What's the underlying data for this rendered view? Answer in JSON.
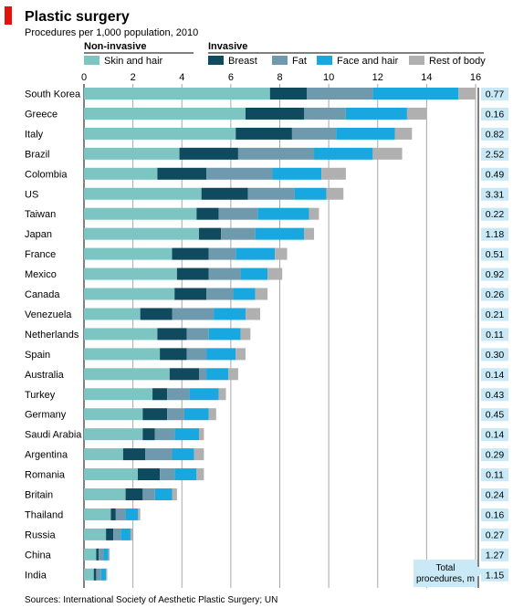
{
  "chart_data": {
    "type": "bar",
    "title": "Plastic surgery",
    "subtitle": "Procedures per 1,000 population, 2010",
    "source": "Sources: International Society of Aesthetic Plastic Surgery; UN",
    "xlim": [
      0,
      16
    ],
    "x_ticks": [
      "0",
      "2",
      "4",
      "6",
      "8",
      "10",
      "12",
      "14",
      "16"
    ],
    "legend": {
      "group_noninvasive": "Non-invasive",
      "group_invasive": "Invasive"
    },
    "total_label": [
      "Total",
      "procedures, m"
    ],
    "series": [
      {
        "name": "Skin and hair",
        "color": "#7cc5c3"
      },
      {
        "name": "Breast",
        "color": "#0f4a5e"
      },
      {
        "name": "Fat",
        "color": "#6f9aad"
      },
      {
        "name": "Face and hair",
        "color": "#18a7df"
      },
      {
        "name": "Rest of body",
        "color": "#b0b0b0"
      }
    ],
    "categories": [
      "South Korea",
      "Greece",
      "Italy",
      "Brazil",
      "Colombia",
      "US",
      "Taiwan",
      "Japan",
      "France",
      "Mexico",
      "Canada",
      "Venezuela",
      "Netherlands",
      "Spain",
      "Australia",
      "Turkey",
      "Germany",
      "Saudi Arabia",
      "Argentina",
      "Romania",
      "Britain",
      "Thailand",
      "Russia",
      "China",
      "India"
    ],
    "values": [
      [
        7.6,
        1.5,
        2.7,
        3.5,
        0.7
      ],
      [
        6.6,
        2.4,
        1.7,
        2.5,
        0.8
      ],
      [
        6.2,
        2.3,
        1.8,
        2.4,
        0.7
      ],
      [
        3.9,
        2.4,
        3.1,
        2.4,
        1.2
      ],
      [
        3.0,
        2.0,
        2.7,
        2.0,
        1.0
      ],
      [
        4.8,
        1.9,
        1.9,
        1.3,
        0.7
      ],
      [
        4.6,
        0.9,
        1.6,
        2.1,
        0.4
      ],
      [
        4.7,
        0.9,
        1.4,
        2.0,
        0.4
      ],
      [
        3.6,
        1.5,
        1.1,
        1.6,
        0.5
      ],
      [
        3.8,
        1.3,
        1.3,
        1.1,
        0.6
      ],
      [
        3.7,
        1.3,
        1.1,
        0.9,
        0.5
      ],
      [
        2.3,
        1.3,
        1.7,
        1.3,
        0.6
      ],
      [
        3.0,
        1.2,
        0.9,
        1.3,
        0.4
      ],
      [
        3.1,
        1.1,
        0.8,
        1.2,
        0.4
      ],
      [
        3.5,
        1.2,
        0.3,
        0.9,
        0.4
      ],
      [
        2.8,
        0.6,
        0.9,
        1.2,
        0.3
      ],
      [
        2.4,
        1.0,
        0.7,
        1.0,
        0.3
      ],
      [
        2.4,
        0.5,
        0.8,
        1.0,
        0.2
      ],
      [
        1.6,
        0.9,
        1.1,
        0.9,
        0.4
      ],
      [
        2.2,
        0.9,
        0.6,
        0.9,
        0.3
      ],
      [
        1.7,
        0.7,
        0.5,
        0.7,
        0.2
      ],
      [
        1.1,
        0.2,
        0.4,
        0.5,
        0.1
      ],
      [
        0.9,
        0.3,
        0.3,
        0.4,
        0.1
      ],
      [
        0.5,
        0.1,
        0.2,
        0.2,
        0.05
      ],
      [
        0.4,
        0.1,
        0.2,
        0.2,
        0.05
      ]
    ],
    "totals": [
      "0.77",
      "0.16",
      "0.82",
      "2.52",
      "0.49",
      "3.31",
      "0.22",
      "1.18",
      "0.51",
      "0.92",
      "0.26",
      "0.21",
      "0.11",
      "0.30",
      "0.14",
      "0.43",
      "0.45",
      "0.14",
      "0.29",
      "0.11",
      "0.24",
      "0.16",
      "0.27",
      "1.27",
      "1.15"
    ]
  }
}
